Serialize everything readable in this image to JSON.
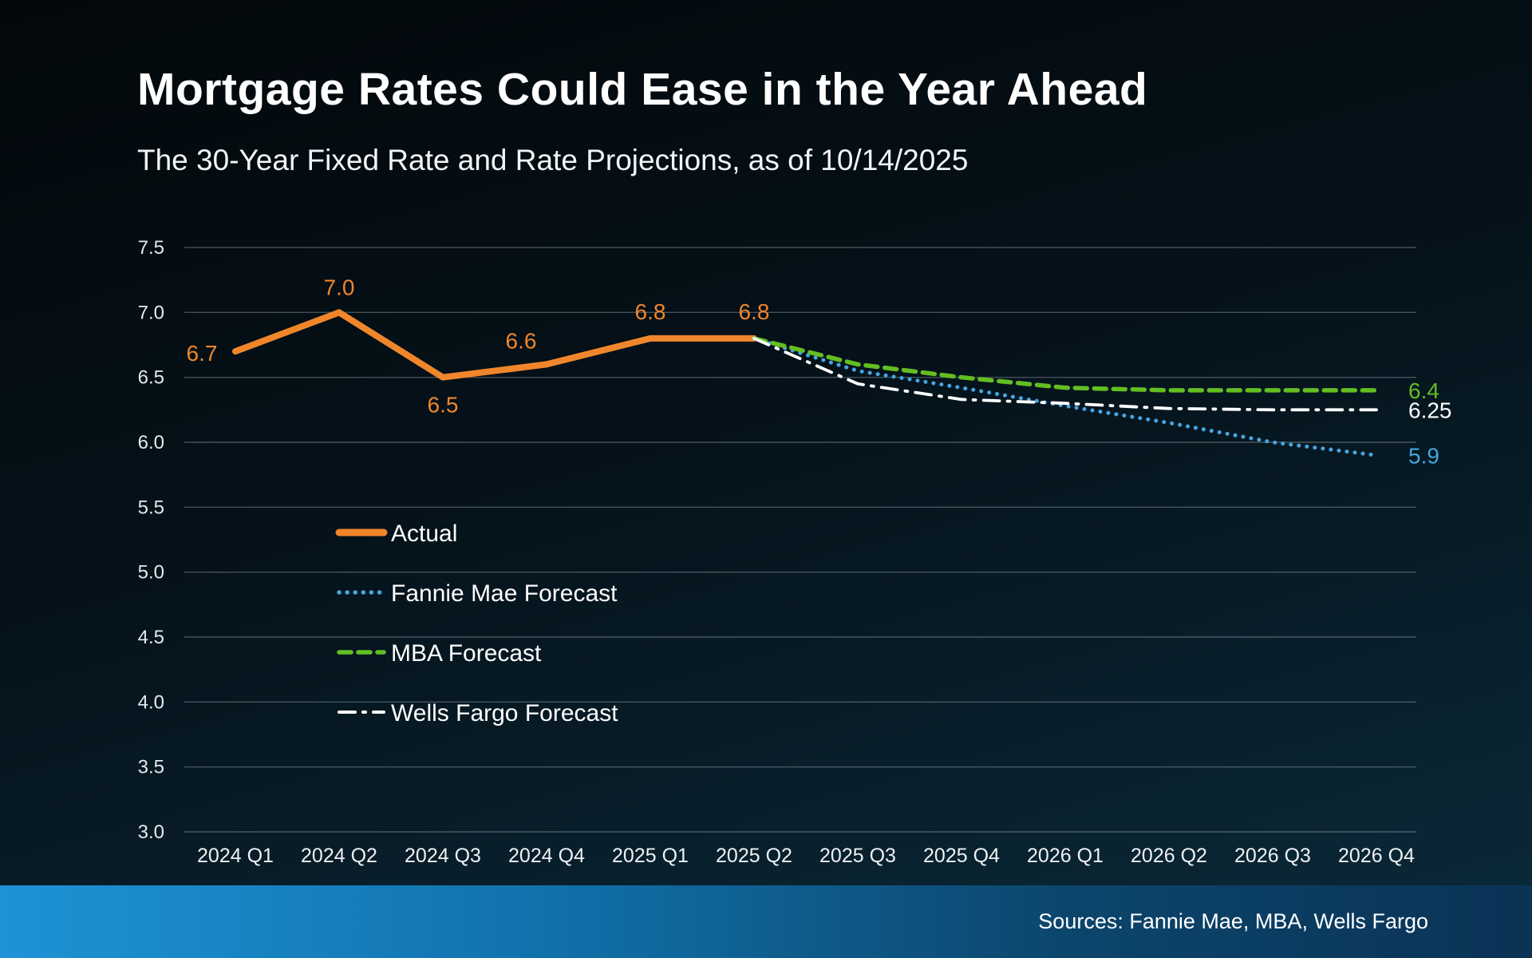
{
  "chart_data": {
    "type": "line",
    "title": "Mortgage Rates Could Ease in the Year Ahead",
    "subtitle": "The 30-Year Fixed Rate and Rate Projections, as of 10/14/2025",
    "categories": [
      "2024 Q1",
      "2024 Q2",
      "2024 Q3",
      "2024 Q4",
      "2025 Q1",
      "2025 Q2",
      "2025 Q3",
      "2025 Q4",
      "2026 Q1",
      "2026 Q2",
      "2026 Q3",
      "2026 Q4"
    ],
    "ylim": [
      3.0,
      7.5
    ],
    "ytick_step": 0.5,
    "grid": true,
    "legend_position": "inside-left",
    "series": [
      {
        "name": "Actual",
        "color": "#F0862B",
        "style": "solid",
        "values": [
          6.7,
          7.0,
          6.5,
          6.6,
          6.8,
          6.8,
          null,
          null,
          null,
          null,
          null,
          null
        ],
        "point_labels": {
          "0": "6.7",
          "1": "7.0",
          "2": "6.5",
          "3": "6.6",
          "4": "6.8",
          "5": "6.8"
        }
      },
      {
        "name": "Fannie Mae Forecast",
        "color": "#44A5E0",
        "style": "dotted",
        "values": [
          null,
          null,
          null,
          null,
          null,
          6.8,
          6.55,
          6.42,
          6.28,
          6.15,
          6.0,
          5.9
        ],
        "end_label": "5.9"
      },
      {
        "name": "MBA Forecast",
        "color": "#63BE21",
        "style": "dashed",
        "values": [
          null,
          null,
          null,
          null,
          null,
          6.8,
          6.6,
          6.5,
          6.42,
          6.4,
          6.4,
          6.4
        ],
        "end_label": "6.4"
      },
      {
        "name": "Wells Fargo Forecast",
        "color": "#FFFFFF",
        "style": "dashdot",
        "values": [
          null,
          null,
          null,
          null,
          null,
          6.8,
          6.45,
          6.33,
          6.3,
          6.26,
          6.25,
          6.25
        ],
        "end_label": "6.25"
      }
    ]
  },
  "footer": {
    "sources": "Sources: Fannie Mae, MBA, Wells Fargo"
  }
}
